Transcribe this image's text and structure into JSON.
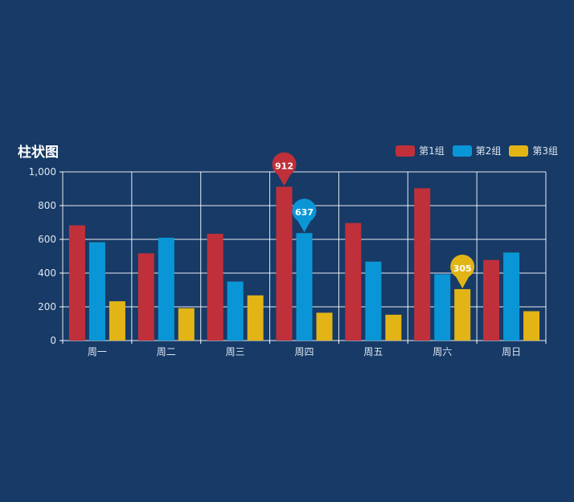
{
  "chart_data": {
    "type": "bar",
    "title": "柱状图",
    "categories": [
      "周一",
      "周二",
      "周三",
      "周四",
      "周五",
      "周六",
      "周日"
    ],
    "series": [
      {
        "name": "第1组",
        "color": "#c0303a",
        "values": [
          683,
          517,
          633,
          912,
          697,
          903,
          478
        ]
      },
      {
        "name": "第2组",
        "color": "#0a96d6",
        "values": [
          583,
          610,
          350,
          637,
          468,
          393,
          522
        ]
      },
      {
        "name": "第3组",
        "color": "#e2b416",
        "values": [
          233,
          192,
          268,
          165,
          153,
          305,
          174
        ]
      }
    ],
    "ylim": [
      0,
      1000
    ],
    "yticks": [
      0,
      200,
      400,
      600,
      800,
      1000
    ],
    "ytick_labels": [
      "0",
      "200",
      "400",
      "600",
      "800",
      "1,000"
    ],
    "grid": true,
    "legend_position": "top-right",
    "highlighted_points": [
      {
        "series": 0,
        "category": 3,
        "label": "912"
      },
      {
        "series": 1,
        "category": 3,
        "label": "637"
      },
      {
        "series": 2,
        "category": 5,
        "label": "305"
      }
    ],
    "colors": {
      "background": "#173a66",
      "grid": "#ffffff",
      "text": "#dfe6f0"
    }
  }
}
